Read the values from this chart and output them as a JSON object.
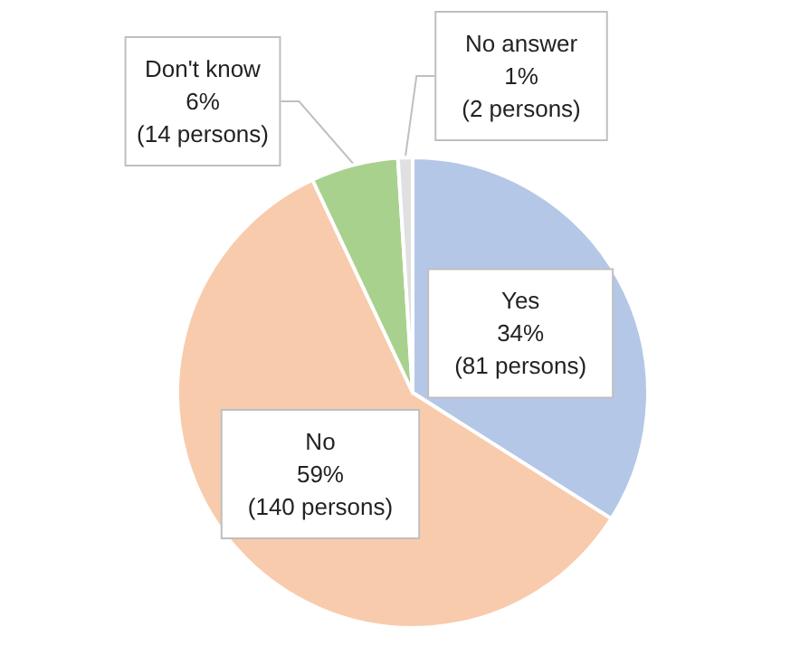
{
  "chart_data": {
    "type": "pie",
    "categories": [
      "Yes",
      "No",
      "Don't know",
      "No answer"
    ],
    "values": [
      34,
      59,
      6,
      1
    ],
    "value_labels": [
      "34%\n(81 persons)",
      "59%\n(140 persons)",
      "6%\n(14 persons)",
      "1%\n(2 persons)"
    ],
    "colors": [
      "#b4c7e7",
      "#f8cbad",
      "#a9d18e",
      "#e0e0e0"
    ],
    "legend": false
  }
}
